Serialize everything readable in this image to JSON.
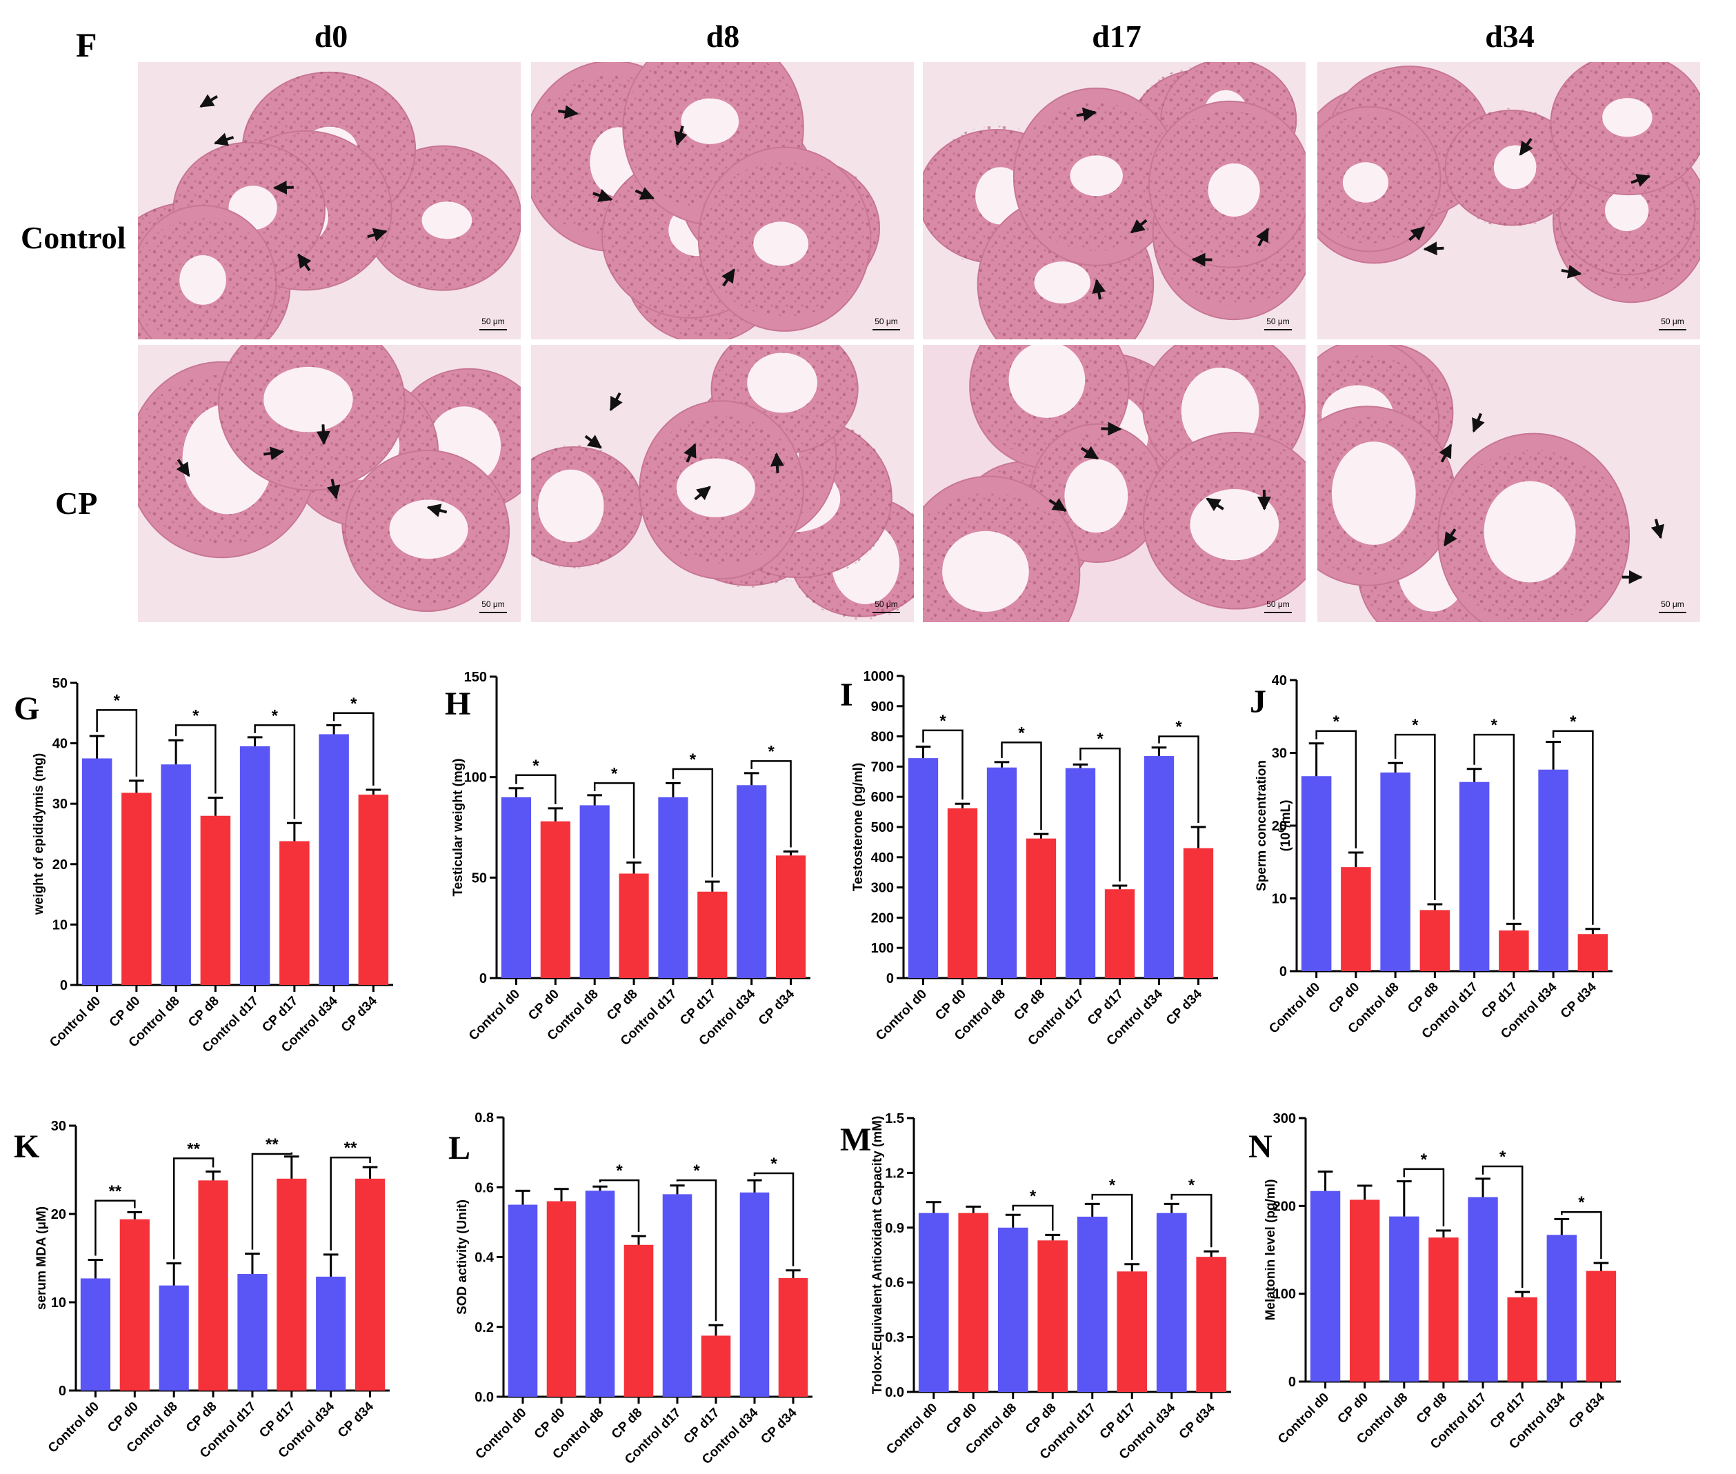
{
  "figure": {
    "panel_f_label": "F",
    "histology": {
      "columns": [
        "d0",
        "d8",
        "d17",
        "d34"
      ],
      "rows": [
        "Control",
        "CP"
      ],
      "scale_bar": "50 μm"
    }
  },
  "colors": {
    "control": "#5a55f5",
    "cp": "#f5323a",
    "tissue_bg": "#e9a7bf",
    "tubule": "#d98aa6",
    "lumen": "#fbf1f5",
    "arrow": "#111111"
  },
  "chart_data": [
    {
      "panel": "G",
      "type": "bar",
      "ylabel": "weight of epididymis (mg)",
      "ylim": [
        0,
        50
      ],
      "yticks": [
        0,
        10,
        20,
        30,
        40,
        50
      ],
      "ytick_labels": [
        "0",
        "10",
        "20",
        "30",
        "40",
        "50"
      ],
      "categories": [
        "Control d0",
        "CP d0",
        "Control d8",
        "CP d8",
        "Control d17",
        "CP d17",
        "Control d34",
        "CP d34"
      ],
      "values": [
        37.5,
        31.8,
        36.5,
        28,
        39.5,
        23.8,
        41.5,
        31.5
      ],
      "errors": [
        3.7,
        2.0,
        4.0,
        3.0,
        1.5,
        3.0,
        1.5,
        0.8
      ],
      "sig": [
        {
          "pair": [
            0,
            1
          ],
          "label": "*",
          "y": 45.5
        },
        {
          "pair": [
            2,
            3
          ],
          "label": "*",
          "y": 43
        },
        {
          "pair": [
            4,
            5
          ],
          "label": "*",
          "y": 43
        },
        {
          "pair": [
            6,
            7
          ],
          "label": "*",
          "y": 45
        }
      ]
    },
    {
      "panel": "H",
      "type": "bar",
      "ylabel": "Testicular weight (mg)",
      "ylim": [
        0,
        150
      ],
      "yticks": [
        0,
        50,
        100,
        150
      ],
      "ytick_labels": [
        "0",
        "50",
        "100",
        "150"
      ],
      "categories": [
        "Control d0",
        "CP d0",
        "Control d8",
        "CP d8",
        "Control d17",
        "CP d17",
        "Control d34",
        "CP d34"
      ],
      "values": [
        90,
        78,
        86,
        52,
        90,
        43,
        96,
        61
      ],
      "errors": [
        4.5,
        6.5,
        5.0,
        5.5,
        7.0,
        5.0,
        6.0,
        2.0
      ],
      "sig": [
        {
          "pair": [
            0,
            1
          ],
          "label": "*",
          "y": 101
        },
        {
          "pair": [
            2,
            3
          ],
          "label": "*",
          "y": 97
        },
        {
          "pair": [
            4,
            5
          ],
          "label": "*",
          "y": 104
        },
        {
          "pair": [
            6,
            7
          ],
          "label": "*",
          "y": 108
        }
      ]
    },
    {
      "panel": "I",
      "type": "bar",
      "ylabel": "Testosterone (pg/ml)",
      "ylim": [
        0,
        1000
      ],
      "yticks": [
        0,
        100,
        200,
        300,
        400,
        500,
        600,
        700,
        800,
        900,
        1000
      ],
      "ytick_labels": [
        "0",
        "100",
        "200",
        "300",
        "400",
        "500",
        "600",
        "700",
        "800",
        "900",
        "1000"
      ],
      "categories": [
        "Control d0",
        "CP d0",
        "Control d8",
        "CP d8",
        "Control d17",
        "CP d17",
        "Control d34",
        "CP d34"
      ],
      "values": [
        728,
        562,
        697,
        462,
        695,
        294,
        735,
        430
      ],
      "errors": [
        38,
        15,
        18,
        15,
        12,
        12,
        28,
        70
      ],
      "sig": [
        {
          "pair": [
            0,
            1
          ],
          "label": "*",
          "y": 820
        },
        {
          "pair": [
            2,
            3
          ],
          "label": "*",
          "y": 780
        },
        {
          "pair": [
            4,
            5
          ],
          "label": "*",
          "y": 760
        },
        {
          "pair": [
            6,
            7
          ],
          "label": "*",
          "y": 800
        }
      ]
    },
    {
      "panel": "J",
      "type": "bar",
      "ylabel": "Sperm concentration",
      "ylabel2_parts": [
        "(10",
        "6",
        "/mL)"
      ],
      "ylim": [
        0,
        40
      ],
      "yticks": [
        0,
        10,
        20,
        30,
        40
      ],
      "ytick_labels": [
        "0",
        "10",
        "20",
        "30",
        "40"
      ],
      "categories": [
        "Control d0",
        "CP d0",
        "Control d8",
        "CP d8",
        "Control d17",
        "CP d17",
        "Control d34",
        "CP d34"
      ],
      "values": [
        26.8,
        14.3,
        27.3,
        8.4,
        26,
        5.6,
        27.7,
        5.1
      ],
      "errors": [
        4.5,
        2.0,
        1.3,
        0.8,
        1.8,
        0.9,
        3.8,
        0.7
      ],
      "sig": [
        {
          "pair": [
            0,
            1
          ],
          "label": "*",
          "y": 33
        },
        {
          "pair": [
            2,
            3
          ],
          "label": "*",
          "y": 32.5
        },
        {
          "pair": [
            4,
            5
          ],
          "label": "*",
          "y": 32.5
        },
        {
          "pair": [
            6,
            7
          ],
          "label": "*",
          "y": 33
        }
      ]
    },
    {
      "panel": "K",
      "type": "bar",
      "ylabel": "serum MDA (μM)",
      "ylim": [
        0,
        30
      ],
      "yticks": [
        0,
        10,
        20,
        30
      ],
      "ytick_labels": [
        "0",
        "10",
        "20",
        "30"
      ],
      "categories": [
        "Control d0",
        "CP d0",
        "Control d8",
        "CP d8",
        "Control d17",
        "CP d17",
        "Control d34",
        "CP d34"
      ],
      "values": [
        12.7,
        19.4,
        11.9,
        23.8,
        13.2,
        24,
        12.9,
        24
      ],
      "errors": [
        2.1,
        0.8,
        2.5,
        1.0,
        2.3,
        2.5,
        2.5,
        1.3
      ],
      "sig": [
        {
          "pair": [
            0,
            1
          ],
          "label": "**",
          "y": 21.5
        },
        {
          "pair": [
            2,
            3
          ],
          "label": "**",
          "y": 26.3
        },
        {
          "pair": [
            4,
            5
          ],
          "label": "**",
          "y": 26.8
        },
        {
          "pair": [
            6,
            7
          ],
          "label": "**",
          "y": 26.4
        }
      ]
    },
    {
      "panel": "L",
      "type": "bar",
      "ylabel": "SOD activity (Unit)",
      "ylim": [
        0,
        0.8
      ],
      "yticks": [
        0,
        0.2,
        0.4,
        0.6,
        0.8
      ],
      "ytick_labels": [
        "0.0",
        "0.2",
        "0.4",
        "0.6",
        "0.8"
      ],
      "categories": [
        "Control d0",
        "CP d0",
        "Control d8",
        "CP d8",
        "Control d17",
        "CP d17",
        "Control d34",
        "CP d34"
      ],
      "values": [
        0.55,
        0.56,
        0.59,
        0.435,
        0.58,
        0.175,
        0.585,
        0.34
      ],
      "errors": [
        0.04,
        0.035,
        0.012,
        0.025,
        0.025,
        0.03,
        0.035,
        0.022
      ],
      "sig": [
        {
          "pair": [
            2,
            3
          ],
          "label": "*",
          "y": 0.62
        },
        {
          "pair": [
            4,
            5
          ],
          "label": "*",
          "y": 0.62
        },
        {
          "pair": [
            6,
            7
          ],
          "label": "*",
          "y": 0.64
        }
      ]
    },
    {
      "panel": "M",
      "type": "bar",
      "ylabel": "Trolox-Equivalent Antioxidant Capacity (mM)",
      "ylim": [
        0,
        1.5
      ],
      "yticks": [
        0,
        0.3,
        0.6,
        0.9,
        1.2,
        1.5
      ],
      "ytick_labels": [
        "0.0",
        "0.3",
        "0.6",
        "0.9",
        "1.2",
        "1.5"
      ],
      "categories": [
        "Control d0",
        "CP d0",
        "Control d8",
        "CP d8",
        "Control d17",
        "CP d17",
        "Control d34",
        "CP d34"
      ],
      "values": [
        0.98,
        0.98,
        0.9,
        0.83,
        0.96,
        0.66,
        0.98,
        0.74
      ],
      "errors": [
        0.06,
        0.035,
        0.07,
        0.03,
        0.07,
        0.04,
        0.05,
        0.03
      ],
      "sig": [
        {
          "pair": [
            2,
            3
          ],
          "label": "*",
          "y": 1.02
        },
        {
          "pair": [
            4,
            5
          ],
          "label": "*",
          "y": 1.08
        },
        {
          "pair": [
            6,
            7
          ],
          "label": "*",
          "y": 1.08
        }
      ]
    },
    {
      "panel": "N",
      "type": "bar",
      "ylabel": "Melatonin level (pg/ml)",
      "ylim": [
        0,
        300
      ],
      "yticks": [
        0,
        100,
        200,
        300
      ],
      "ytick_labels": [
        "0",
        "100",
        "200",
        "300"
      ],
      "categories": [
        "Control d0",
        "CP d0",
        "Control d8",
        "CP d8",
        "Control d17",
        "CP d17",
        "Control d34",
        "CP d34"
      ],
      "values": [
        217,
        207,
        188,
        164,
        210,
        96,
        167,
        126
      ],
      "errors": [
        22,
        16,
        40,
        8,
        21,
        6,
        18,
        9
      ],
      "sig": [
        {
          "pair": [
            2,
            3
          ],
          "label": "*",
          "y": 242
        },
        {
          "pair": [
            4,
            5
          ],
          "label": "*",
          "y": 245
        },
        {
          "pair": [
            6,
            7
          ],
          "label": "*",
          "y": 193
        }
      ]
    }
  ]
}
